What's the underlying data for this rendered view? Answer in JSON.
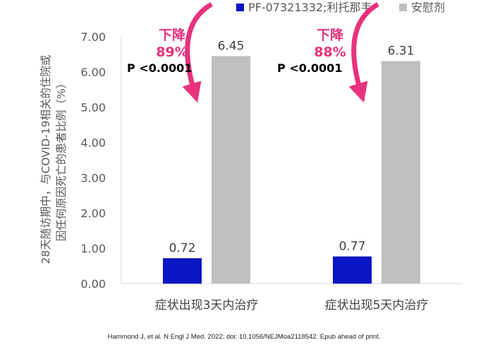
{
  "chart_data": {
    "type": "bar",
    "categories": [
      "症状出现3天内治疗",
      "症状出现5天内治疗"
    ],
    "series": [
      {
        "name": "PF-07321332;利托那韦",
        "values": [
          0.72,
          0.77
        ],
        "color": "#0a16c4"
      },
      {
        "name": "安慰剂",
        "values": [
          6.45,
          6.31
        ],
        "color": "#bfbfbf"
      }
    ],
    "data_labels": [
      "0.72",
      "6.45",
      "0.77",
      "6.31"
    ],
    "ylabel_lines": [
      "28天随访期中，与COVID-19相关的住院或",
      "因任何原因死亡的患者比例（%）"
    ],
    "ylim": [
      0,
      7
    ],
    "yticks": [
      "0.00",
      "1.00",
      "2.00",
      "3.00",
      "4.00",
      "5.00",
      "6.00",
      "7.00"
    ],
    "legend_position": "top",
    "grid": false,
    "annotations": [
      {
        "decrease_label": "下降",
        "percent": "89%",
        "p_value": "P <0.0001"
      },
      {
        "decrease_label": "下降",
        "percent": "88%",
        "p_value": "P <0.0001"
      }
    ],
    "arrow_color": "#e8327c"
  },
  "citation": "Hammond J, et al. N Engl J Med. 2022; doi: 10.1056/NEJMoa2118542. Epub ahead of print."
}
